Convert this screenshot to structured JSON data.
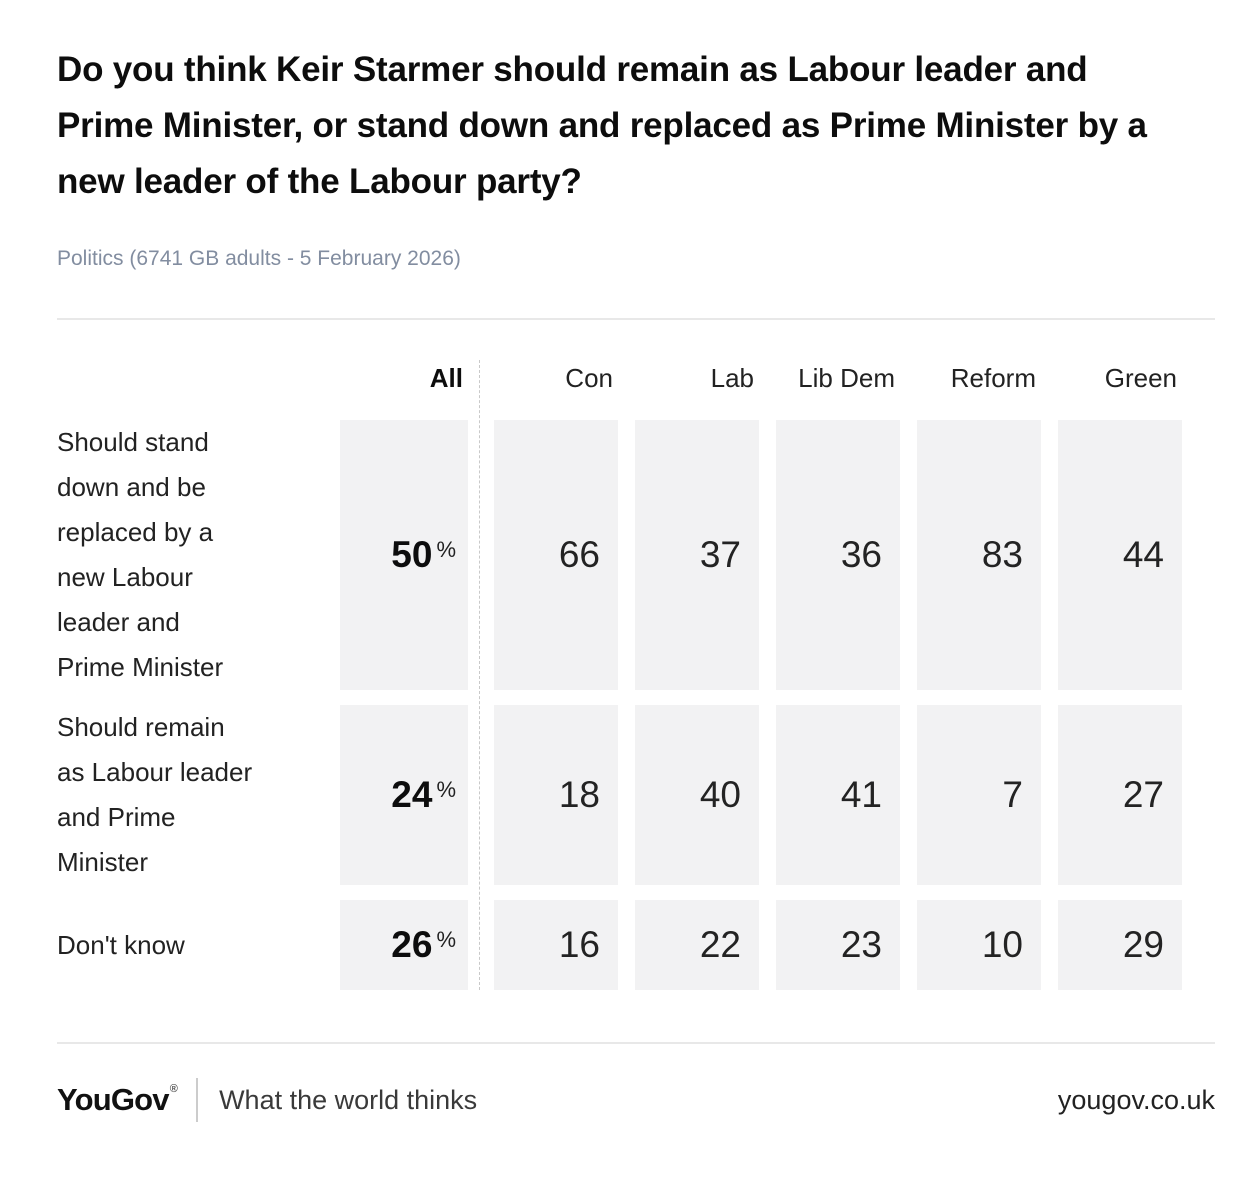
{
  "chart_data": {
    "type": "table",
    "title": "Do you think Keir Starmer should remain as Labour leader and Prime Minister, or stand down and replaced as Prime Minister by a new leader of the Labour party?",
    "subtitle": "Politics (6741 GB adults - 5 February 2026)",
    "columns": [
      "All",
      "Con",
      "Lab",
      "Lib Dem",
      "Reform",
      "Green"
    ],
    "all_column_unit": "%",
    "rows": [
      {
        "label": "Should stand down and be replaced by a new Labour leader and Prime Minister",
        "values": [
          50,
          66,
          37,
          36,
          83,
          44
        ]
      },
      {
        "label": "Should remain as Labour leader and Prime Minister",
        "values": [
          24,
          18,
          40,
          41,
          7,
          27
        ]
      },
      {
        "label": "Don't know",
        "values": [
          26,
          16,
          22,
          23,
          10,
          29
        ]
      }
    ]
  },
  "question": {
    "title": "Do you think Keir Starmer should remain as Labour leader and Prime Minister, or stand down and replaced as Prime Minister by a new leader of the Labour party?",
    "subtitle": "Politics (6741 GB adults - 5 February 2026)"
  },
  "table": {
    "percent_sign": "%",
    "columns": [
      "All",
      "Con",
      "Lab",
      "Lib Dem",
      "Reform",
      "Green"
    ],
    "rows": [
      {
        "label": "Should stand\ndown and be\nreplaced by a\nnew Labour\nleader and\nPrime Minister",
        "all": "50",
        "values": [
          "66",
          "37",
          "36",
          "83",
          "44"
        ]
      },
      {
        "label": "Should remain\nas Labour leader\nand Prime\nMinister",
        "all": "24",
        "values": [
          "18",
          "40",
          "41",
          "7",
          "27"
        ]
      },
      {
        "label": "Don't know",
        "all": "26",
        "values": [
          "16",
          "22",
          "23",
          "10",
          "29"
        ]
      }
    ]
  },
  "footer": {
    "logo": "YouGov",
    "registered_mark": "®",
    "tagline": "What the world thinks",
    "website": "yougov.co.uk"
  },
  "colors": {
    "cell_background": "#f2f2f3",
    "subtitle_text": "#828da0",
    "divider": "#e8e8e8",
    "text": "#1e1e1e"
  }
}
